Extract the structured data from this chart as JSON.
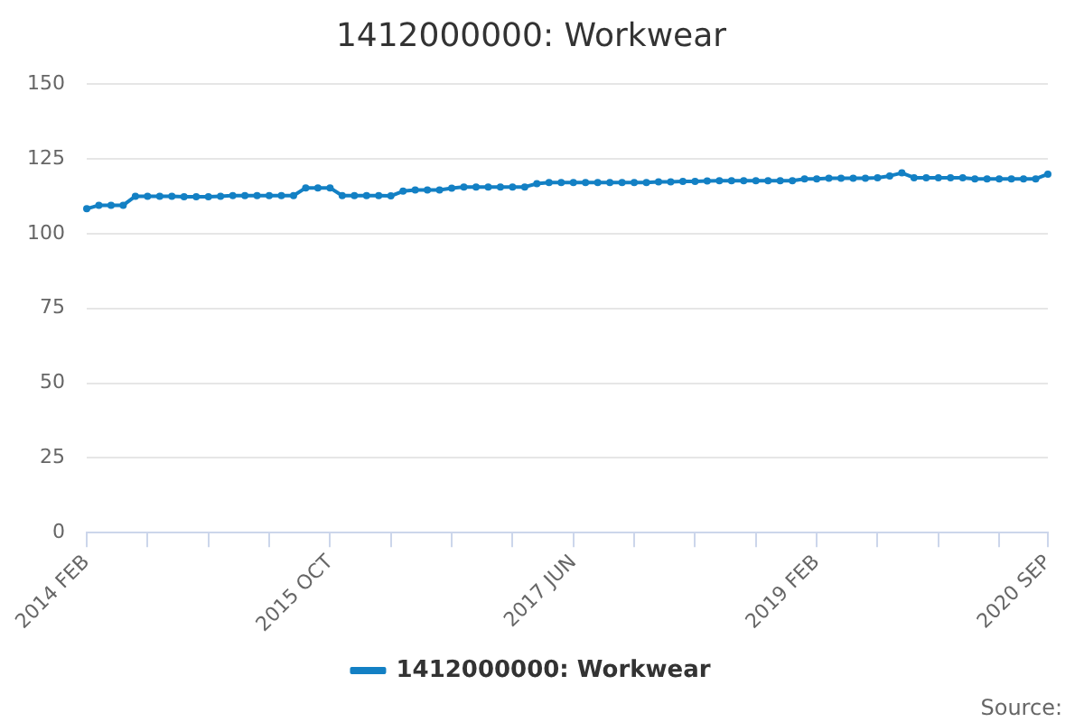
{
  "chart_data": {
    "type": "line",
    "title": "1412000000: Workwear",
    "categories": [
      "2014 FEB",
      null,
      null,
      null,
      null,
      null,
      null,
      null,
      null,
      null,
      null,
      null,
      null,
      null,
      null,
      null,
      null,
      null,
      null,
      null,
      "2015 OCT",
      null,
      null,
      null,
      null,
      null,
      null,
      null,
      null,
      null,
      null,
      null,
      null,
      null,
      null,
      null,
      null,
      null,
      null,
      null,
      "2017 JUN",
      null,
      null,
      null,
      null,
      null,
      null,
      null,
      null,
      null,
      null,
      null,
      null,
      null,
      null,
      null,
      null,
      null,
      null,
      null,
      "2019 FEB",
      null,
      null,
      null,
      null,
      null,
      null,
      null,
      null,
      null,
      null,
      null,
      null,
      null,
      null,
      null,
      null,
      null,
      null,
      "2020 SEP"
    ],
    "series": [
      {
        "name": "1412000000: Workwear",
        "color": "#1380c4",
        "values": [
          108.3,
          109.5,
          109.5,
          109.5,
          112.5,
          112.5,
          112.5,
          112.5,
          112.3,
          112.3,
          112.3,
          112.5,
          112.7,
          112.7,
          112.7,
          112.7,
          112.7,
          112.7,
          115.3,
          115.3,
          115.3,
          112.7,
          112.7,
          112.7,
          112.7,
          112.6,
          114.2,
          114.6,
          114.6,
          114.6,
          115.2,
          115.6,
          115.6,
          115.6,
          115.6,
          115.6,
          115.6,
          116.7,
          117.1,
          117.1,
          117.1,
          117.1,
          117.1,
          117.1,
          117.1,
          117.1,
          117.1,
          117.3,
          117.3,
          117.5,
          117.5,
          117.6,
          117.7,
          117.7,
          117.7,
          117.7,
          117.7,
          117.7,
          117.7,
          118.3,
          118.3,
          118.5,
          118.5,
          118.5,
          118.5,
          118.7,
          119.3,
          120.3,
          118.7,
          118.7,
          118.7,
          118.7,
          118.7,
          118.3,
          118.3,
          118.3,
          118.3,
          118.3,
          118.3,
          119.9
        ]
      }
    ],
    "ylim": [
      0,
      150
    ],
    "yticks": [
      0,
      25,
      50,
      75,
      100,
      125,
      150
    ],
    "grid": "y",
    "legend": "bottom",
    "marker": "circle",
    "annotations": [
      "Source:"
    ]
  }
}
